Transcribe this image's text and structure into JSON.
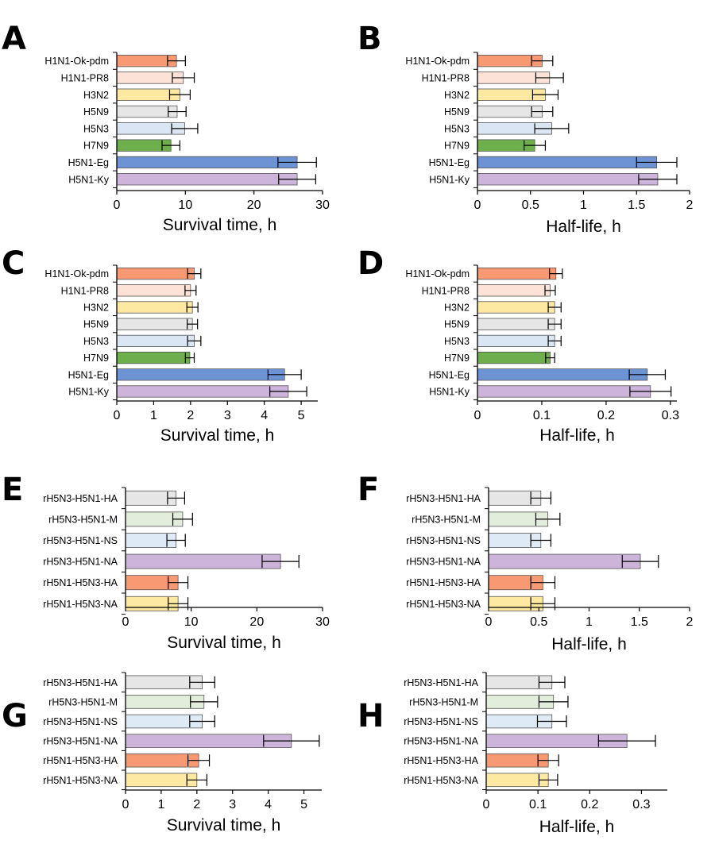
{
  "colors": {
    "H1N1-Ok-pdm": "#f79a74",
    "H1N1-PR8": "#fde3d7",
    "H3N2": "#fde9a1",
    "H5N9": "#e6e6e6",
    "H5N3": "#dbe6f5",
    "H7N9": "#6fae4c",
    "H5N1-Eg": "#6e93d4",
    "H5N1-Ky": "#cdb4db",
    "rH5N3-H5N1-HA": "#e6e6e6",
    "rH5N3-H5N1-M": "#e3eddb",
    "rH5N3-H5N1-NS": "#deebf7",
    "rH5N3-H5N1-NA": "#cdb4db",
    "rH5N1-H5N3-HA": "#f79a74",
    "rH5N1-H5N3-NA": "#fde9a1"
  },
  "chart_data": [
    {
      "panel": "A",
      "type": "bar",
      "orientation": "horizontal",
      "categories": [
        "H1N1-Ok-pdm",
        "H1N1-PR8",
        "H3N2",
        "H5N9",
        "H5N3",
        "H7N9",
        "H5N1-Eg",
        "H5N1-Ky"
      ],
      "values": [
        8.7,
        9.7,
        9.2,
        8.8,
        9.9,
        7.9,
        26.3,
        26.3
      ],
      "errors": [
        1.3,
        1.6,
        1.5,
        1.3,
        1.9,
        1.3,
        2.8,
        2.7
      ],
      "xlim": [
        0,
        30
      ],
      "ticks": [
        0,
        10,
        20,
        30
      ],
      "xlabel": "Survival time, h"
    },
    {
      "panel": "B",
      "type": "bar",
      "orientation": "horizontal",
      "categories": [
        "H1N1-Ok-pdm",
        "H1N1-PR8",
        "H3N2",
        "H5N9",
        "H5N3",
        "H7N9",
        "H5N1-Eg",
        "H5N1-Ky"
      ],
      "values": [
        0.61,
        0.68,
        0.64,
        0.61,
        0.7,
        0.54,
        1.69,
        1.7
      ],
      "errors": [
        0.1,
        0.13,
        0.12,
        0.1,
        0.16,
        0.1,
        0.19,
        0.18
      ],
      "xlim": [
        0,
        2
      ],
      "ticks": [
        "0",
        "0.5",
        "1",
        "1.5",
        "2"
      ],
      "xlabel": "Half-life, h"
    },
    {
      "panel": "C",
      "type": "bar",
      "orientation": "horizontal",
      "categories": [
        "H1N1-Ok-pdm",
        "H1N1-PR8",
        "H3N2",
        "H5N9",
        "H5N3",
        "H7N9",
        "H5N1-Eg",
        "H5N1-Ky"
      ],
      "values": [
        2.1,
        2.0,
        2.05,
        2.05,
        2.1,
        1.98,
        4.55,
        4.65
      ],
      "errors": [
        0.18,
        0.15,
        0.15,
        0.14,
        0.18,
        0.12,
        0.45,
        0.5
      ],
      "xlim": [
        0,
        5.45
      ],
      "ticks": [
        0,
        1,
        2,
        3,
        4,
        5
      ],
      "xlabel": "Survival time, h"
    },
    {
      "panel": "D",
      "type": "bar",
      "orientation": "horizontal",
      "categories": [
        "H1N1-Ok-pdm",
        "H1N1-PR8",
        "H3N2",
        "H5N9",
        "H5N3",
        "H7N9",
        "H5N1-Eg",
        "H5N1-Ky"
      ],
      "values": [
        0.122,
        0.113,
        0.12,
        0.12,
        0.12,
        0.113,
        0.264,
        0.269
      ],
      "errors": [
        0.01,
        0.008,
        0.01,
        0.01,
        0.01,
        0.007,
        0.028,
        0.032
      ],
      "xlim": [
        0,
        0.31
      ],
      "ticks": [
        "0",
        "0.1",
        "0.2",
        "0.3"
      ],
      "xlabel": "Half-life, h"
    },
    {
      "panel": "E",
      "type": "bar",
      "orientation": "horizontal",
      "categories": [
        "rH5N3-H5N1-HA",
        "rH5N3-H5N1-M",
        "rH5N3-H5N1-NS",
        "rH5N3-H5N1-NA",
        "rH5N1-H5N3-HA",
        "rH5N1-H5N3-NA"
      ],
      "values": [
        7.7,
        8.7,
        7.7,
        23.6,
        8.0,
        8.0
      ],
      "errors": [
        1.3,
        1.5,
        1.4,
        2.8,
        1.5,
        1.5
      ],
      "xlim": [
        0,
        30
      ],
      "ticks": [
        0,
        10,
        20,
        30
      ],
      "xlabel": "Survival time, h"
    },
    {
      "panel": "F",
      "type": "bar",
      "orientation": "horizontal",
      "categories": [
        "rH5N3-H5N1-HA",
        "rH5N3-H5N1-M",
        "rH5N3-H5N1-NS",
        "rH5N3-H5N1-NA",
        "rH5N1-H5N3-HA",
        "rH5N1-H5N3-NA"
      ],
      "values": [
        0.52,
        0.59,
        0.52,
        1.51,
        0.54,
        0.54
      ],
      "errors": [
        0.1,
        0.12,
        0.1,
        0.18,
        0.12,
        0.12
      ],
      "xlim": [
        0,
        2
      ],
      "ticks": [
        "0",
        "0.5",
        "1",
        "1.5",
        "2"
      ],
      "xlabel": "Half-life, h"
    },
    {
      "panel": "G",
      "type": "bar",
      "orientation": "horizontal",
      "categories": [
        "rH5N3-H5N1-HA",
        "rH5N3-H5N1-M",
        "rH5N3-H5N1-NS",
        "rH5N3-H5N1-NA",
        "rH5N1-H5N3-HA",
        "rH5N1-H5N3-NA"
      ],
      "values": [
        2.15,
        2.2,
        2.15,
        4.65,
        2.05,
        2.0
      ],
      "errors": [
        0.35,
        0.38,
        0.35,
        0.78,
        0.3,
        0.28
      ],
      "xlim": [
        0,
        5.5
      ],
      "ticks": [
        0,
        1,
        2,
        3,
        4,
        5
      ],
      "xlabel": "Survival time, h"
    },
    {
      "panel": "H",
      "type": "bar",
      "orientation": "horizontal",
      "categories": [
        "rH5N3-H5N1-HA",
        "rH5N3-H5N1-M",
        "rH5N3-H5N1-NS",
        "rH5N3-H5N1-NA",
        "rH5N1-H5N3-HA",
        "rH5N1-H5N3-NA"
      ],
      "values": [
        0.127,
        0.13,
        0.127,
        0.272,
        0.12,
        0.12
      ],
      "errors": [
        0.025,
        0.028,
        0.028,
        0.055,
        0.02,
        0.018
      ],
      "xlim": [
        0,
        0.35
      ],
      "ticks": [
        "0",
        "0.1",
        "0.2",
        "0.3"
      ],
      "xlabel": "Half-life, h"
    }
  ]
}
